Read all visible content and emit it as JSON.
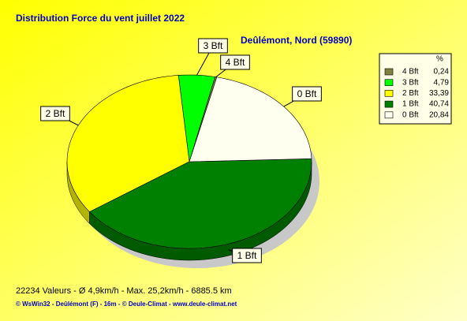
{
  "chart_data": {
    "type": "pie",
    "title": "Distribution Force du vent  juillet 2022",
    "subtitle": "Deûlémont, Nord (59890)",
    "legend_header": "%",
    "categories": [
      "4 Bft",
      "3 Bft",
      "2 Bft",
      "1 Bft",
      "0 Bft"
    ],
    "values": [
      0.24,
      4.79,
      33.39,
      40.74,
      20.84
    ],
    "value_labels": [
      "0,24",
      "4,79",
      "33,39",
      "40,74",
      "20,84"
    ],
    "colors": [
      "#808040",
      "#00ff00",
      "#ffff00",
      "#008000",
      "#fffff0"
    ]
  },
  "footer": {
    "stats": "22234 Valeurs   -   Ø 4,9km/h  -  Max. 25,2km/h   -   6885.5 km",
    "credits": "© WsWin32  -  Deûlémont (F) - 16m  -  © Deule-Climat - www.deule-climat.net"
  }
}
